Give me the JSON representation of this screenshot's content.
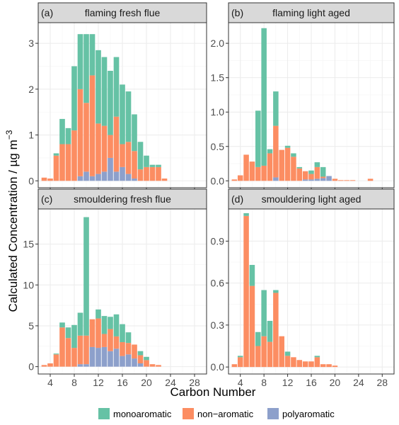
{
  "chart_data": {
    "type": "bar",
    "stacked": true,
    "xlabel": "Carbon Number",
    "ylabel": "Calculated Concentration / µg m",
    "ylabel_superscript": "−3",
    "xlim": [
      2,
      30
    ],
    "xticks": [
      4,
      8,
      12,
      16,
      20,
      24,
      28
    ],
    "legend_position": "bottom",
    "series_names": [
      "monoaromatic",
      "non−aromatic",
      "polyaromatic"
    ],
    "colors": {
      "monoaromatic": "#66c2a5",
      "non-aromatic": "#fc8d62",
      "polyaromatic": "#8da0cb"
    },
    "panels": [
      {
        "title": "(a)",
        "subtitle": "flaming fresh flue",
        "ylim": [
          -0.15,
          3.45
        ],
        "yticks": [
          0,
          1,
          2,
          3
        ],
        "tick_labels": [
          "0",
          "1",
          "2",
          "3"
        ],
        "x": [
          3,
          4,
          5,
          6,
          7,
          8,
          9,
          10,
          11,
          12,
          13,
          14,
          15,
          16,
          17,
          18,
          19,
          20,
          21,
          22,
          23
        ],
        "series": [
          {
            "name": "polyaromatic",
            "values": [
              0,
              0,
              0,
              0,
              0,
              0,
              0.1,
              0.2,
              0.1,
              0.15,
              0.2,
              0.5,
              0.2,
              0.3,
              0.15,
              0.05,
              0,
              0,
              0,
              0,
              0
            ]
          },
          {
            "name": "non-aromatic",
            "values": [
              0.07,
              0.05,
              0.55,
              0.8,
              0.8,
              1.1,
              1.9,
              1.5,
              2.2,
              1.1,
              1.0,
              0.5,
              1.2,
              0.5,
              0.7,
              0.6,
              0.25,
              0.3,
              0.3,
              0.3,
              0.05
            ]
          },
          {
            "name": "monoaromatic",
            "values": [
              0,
              0,
              0.05,
              0.55,
              0.35,
              1.4,
              1.2,
              1.5,
              0.9,
              1.6,
              1.5,
              1.4,
              1.3,
              1.3,
              1.1,
              0.8,
              0.6,
              0.25,
              0.05,
              0.05,
              0
            ]
          }
        ]
      },
      {
        "title": "(b)",
        "subtitle": "flaming light aged",
        "ylim": [
          -0.1,
          2.3
        ],
        "yticks": [
          0,
          0.5,
          1.0,
          1.5,
          2.0
        ],
        "tick_labels": [
          "0.0",
          "0.5",
          "1.0",
          "1.5",
          "2.0"
        ],
        "x": [
          3,
          4,
          5,
          6,
          7,
          8,
          9,
          10,
          11,
          12,
          13,
          14,
          15,
          16,
          17,
          18,
          19,
          20,
          21,
          22,
          23,
          24,
          25,
          26,
          27
        ],
        "series": [
          {
            "name": "polyaromatic",
            "values": [
              0,
              0,
              0,
              0,
              0,
              0,
              0,
              0.05,
              0,
              0,
              0,
              0,
              0.02,
              0.02,
              0.03,
              0.04,
              0.07,
              0,
              0,
              0,
              0,
              0,
              0,
              0,
              0
            ]
          },
          {
            "name": "non-aromatic",
            "values": [
              0.02,
              0.08,
              0.38,
              0.28,
              0.2,
              0.22,
              0.4,
              0.75,
              0.45,
              0.48,
              0.35,
              0.18,
              0.12,
              0.08,
              0.17,
              0.02,
              0,
              0.03,
              0.01,
              0.01,
              0.01,
              0,
              0,
              0.03,
              0
            ]
          },
          {
            "name": "monoaromatic",
            "values": [
              0,
              0,
              0,
              0,
              0.82,
              2.0,
              0.06,
              0.5,
              0,
              0.03,
              0.05,
              0.02,
              0,
              0.05,
              0.07,
              0.14,
              0,
              0,
              0,
              0,
              0,
              0,
              0,
              0,
              0
            ]
          }
        ]
      },
      {
        "title": "(c)",
        "subtitle": "smouldering fresh flue",
        "ylim": [
          -0.9,
          19.3
        ],
        "yticks": [
          0,
          5,
          10,
          15
        ],
        "tick_labels": [
          "0",
          "5",
          "10",
          "15"
        ],
        "x": [
          3,
          4,
          5,
          6,
          7,
          8,
          9,
          10,
          11,
          12,
          13,
          14,
          15,
          16,
          17,
          18,
          19,
          20,
          21,
          22
        ],
        "series": [
          {
            "name": "polyaromatic",
            "values": [
              0,
              0,
              0,
              0,
              0,
              0,
              0.3,
              0.3,
              2.4,
              2.3,
              2.4,
              1.9,
              2.2,
              1.3,
              1.5,
              1.0,
              0.4,
              0,
              0,
              0
            ]
          },
          {
            "name": "non-aromatic",
            "values": [
              0.2,
              0.4,
              1.5,
              4.8,
              3.5,
              2.3,
              3.5,
              3.5,
              3.4,
              3.6,
              1.6,
              2.7,
              1.5,
              1.7,
              1.4,
              1.7,
              1.0,
              0.8,
              0.3,
              0.2
            ]
          },
          {
            "name": "monoaromatic",
            "values": [
              0,
              0,
              0.1,
              0.6,
              1.3,
              2.8,
              2.8,
              14.5,
              0,
              1.1,
              2.2,
              1.5,
              2.7,
              2.2,
              1.3,
              0,
              0.5,
              0.4,
              0,
              0
            ]
          }
        ]
      },
      {
        "title": "(d)",
        "subtitle": "smouldering light aged",
        "ylim": [
          -0.05,
          1.13
        ],
        "yticks": [
          0,
          0.3,
          0.6,
          0.9
        ],
        "tick_labels": [
          "0.0",
          "0.3",
          "0.6",
          "0.9"
        ],
        "x": [
          3,
          4,
          5,
          6,
          7,
          8,
          9,
          10,
          11,
          12,
          13,
          14,
          15,
          16,
          17,
          18,
          19,
          20,
          21
        ],
        "series": [
          {
            "name": "polyaromatic",
            "values": [
              0,
              0,
              0,
              0,
              0,
              0,
              0,
              0,
              0,
              0,
              0,
              0,
              0,
              0,
              0,
              0,
              0,
              0,
              0
            ]
          },
          {
            "name": "non-aromatic",
            "values": [
              0.02,
              0.07,
              1.08,
              0.58,
              0.15,
              0.22,
              0.18,
              0.53,
              0.22,
              0.08,
              0.07,
              0.05,
              0.04,
              0.04,
              0.07,
              0.02,
              0.02,
              0.01,
              0
            ]
          },
          {
            "name": "monoaromatic",
            "values": [
              0,
              0.01,
              0.02,
              0.15,
              0.1,
              0.33,
              0.15,
              0.02,
              0,
              0.03,
              0,
              0,
              0,
              0,
              0.01,
              0,
              0,
              0,
              0
            ]
          }
        ]
      }
    ]
  }
}
